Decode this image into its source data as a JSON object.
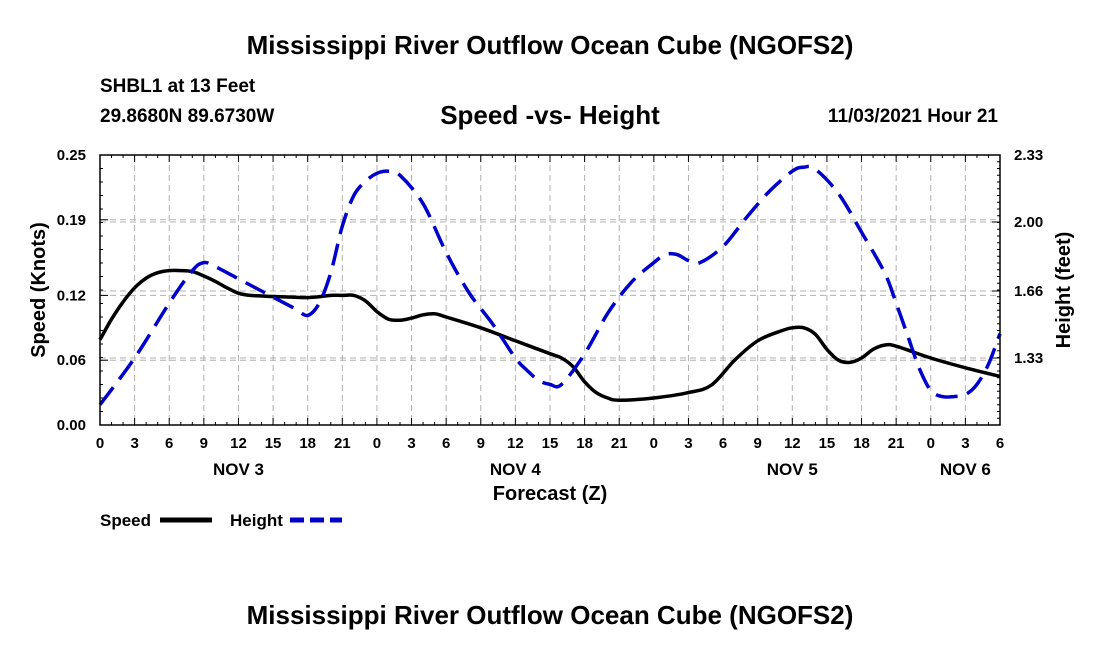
{
  "header": {
    "title": "Mississippi River Outflow Ocean Cube (NGOFS2)",
    "station": "SHBL1 at 13 Feet",
    "coords": "29.8680N  89.6730W",
    "subtitle": "Speed -vs- Height",
    "datetime": "11/03/2021 Hour 21"
  },
  "footer": {
    "title": "Mississippi River Outflow Ocean Cube (NGOFS2)"
  },
  "colors": {
    "speed": "#000000",
    "height": "#0000cc",
    "grid": "#b0b0b0"
  },
  "chart_data": {
    "type": "line",
    "title": "Speed -vs- Height",
    "xlabel": "Forecast (Z)",
    "ylabel": "Speed (Knots)",
    "y2label": "Height (feet)",
    "x_hours_range": [
      0,
      78
    ],
    "x_ticks": [
      {
        "h": 0,
        "label": "0"
      },
      {
        "h": 3,
        "label": "3"
      },
      {
        "h": 6,
        "label": "6"
      },
      {
        "h": 9,
        "label": "9"
      },
      {
        "h": 12,
        "label": "12"
      },
      {
        "h": 15,
        "label": "15"
      },
      {
        "h": 18,
        "label": "18"
      },
      {
        "h": 21,
        "label": "21"
      },
      {
        "h": 24,
        "label": "0"
      },
      {
        "h": 27,
        "label": "3"
      },
      {
        "h": 30,
        "label": "6"
      },
      {
        "h": 33,
        "label": "9"
      },
      {
        "h": 36,
        "label": "12"
      },
      {
        "h": 39,
        "label": "15"
      },
      {
        "h": 42,
        "label": "18"
      },
      {
        "h": 45,
        "label": "21"
      },
      {
        "h": 48,
        "label": "0"
      },
      {
        "h": 51,
        "label": "3"
      },
      {
        "h": 54,
        "label": "6"
      },
      {
        "h": 57,
        "label": "9"
      },
      {
        "h": 60,
        "label": "12"
      },
      {
        "h": 63,
        "label": "15"
      },
      {
        "h": 66,
        "label": "18"
      },
      {
        "h": 69,
        "label": "21"
      },
      {
        "h": 72,
        "label": "0"
      },
      {
        "h": 75,
        "label": "3"
      },
      {
        "h": 78,
        "label": "6"
      }
    ],
    "day_labels": [
      {
        "h": 12,
        "label": "NOV 3"
      },
      {
        "h": 36,
        "label": "NOV 4"
      },
      {
        "h": 60,
        "label": "NOV 5"
      },
      {
        "h": 75,
        "label": "NOV 6"
      }
    ],
    "ylim": [
      0,
      0.25
    ],
    "y_ticks": [
      0.0,
      0.06,
      0.12,
      0.19,
      0.25
    ],
    "y_tick_labels": [
      "0.00",
      "0.06",
      "0.12",
      "0.19",
      "0.25"
    ],
    "y2lim": [
      1.0,
      2.33
    ],
    "y2_ticks": [
      1.33,
      1.66,
      2.0,
      2.33
    ],
    "y2_tick_labels": [
      "1.33",
      "1.66",
      "2.00",
      "2.33"
    ],
    "series": [
      {
        "name": "Speed",
        "axis": "left",
        "style": "solid",
        "x_hours": [
          0,
          1,
          2,
          3,
          4,
          5,
          6,
          7,
          8,
          9,
          10,
          11,
          12,
          13,
          15,
          18,
          20,
          21,
          22,
          23,
          24,
          25,
          26,
          27,
          28,
          29,
          30,
          33,
          36,
          39,
          40,
          41,
          42,
          43,
          44,
          45,
          48,
          51,
          53,
          55,
          57,
          59,
          60,
          61,
          62,
          63,
          64,
          65,
          66,
          67,
          68,
          69,
          72,
          75,
          78
        ],
        "values": [
          0.079,
          0.098,
          0.114,
          0.127,
          0.136,
          0.141,
          0.143,
          0.143,
          0.142,
          0.138,
          0.133,
          0.127,
          0.122,
          0.12,
          0.119,
          0.118,
          0.12,
          0.12,
          0.12,
          0.115,
          0.105,
          0.098,
          0.097,
          0.099,
          0.102,
          0.103,
          0.1,
          0.09,
          0.078,
          0.066,
          0.062,
          0.054,
          0.04,
          0.03,
          0.025,
          0.023,
          0.025,
          0.03,
          0.037,
          0.06,
          0.078,
          0.087,
          0.09,
          0.09,
          0.084,
          0.07,
          0.06,
          0.058,
          0.062,
          0.07,
          0.074,
          0.073,
          0.062,
          0.053,
          0.045
        ]
      },
      {
        "name": "Height",
        "axis": "right",
        "style": "dashed",
        "x_hours": [
          0,
          3,
          6,
          8,
          9,
          10,
          12,
          14,
          16,
          17,
          18,
          19,
          20,
          21,
          22,
          23,
          24,
          25,
          26,
          28,
          30,
          32,
          34,
          36,
          37,
          38,
          39,
          40,
          42,
          44,
          46,
          48,
          49,
          50,
          51,
          52,
          54,
          56,
          58,
          60,
          61,
          62,
          64,
          66,
          68,
          69,
          70,
          71,
          72,
          73,
          74,
          75,
          76,
          77,
          78
        ],
        "values": [
          1.1,
          1.33,
          1.6,
          1.76,
          1.8,
          1.78,
          1.72,
          1.66,
          1.6,
          1.57,
          1.54,
          1.6,
          1.75,
          1.98,
          2.13,
          2.2,
          2.24,
          2.25,
          2.23,
          2.09,
          1.85,
          1.65,
          1.5,
          1.33,
          1.27,
          1.22,
          1.2,
          1.2,
          1.35,
          1.55,
          1.7,
          1.8,
          1.84,
          1.84,
          1.81,
          1.8,
          1.88,
          2.02,
          2.15,
          2.25,
          2.27,
          2.26,
          2.14,
          1.95,
          1.75,
          1.6,
          1.44,
          1.28,
          1.17,
          1.14,
          1.14,
          1.15,
          1.2,
          1.3,
          1.45
        ]
      }
    ],
    "legend": [
      {
        "label": "Speed",
        "style": "solid"
      },
      {
        "label": "Height",
        "style": "dashed"
      }
    ]
  }
}
